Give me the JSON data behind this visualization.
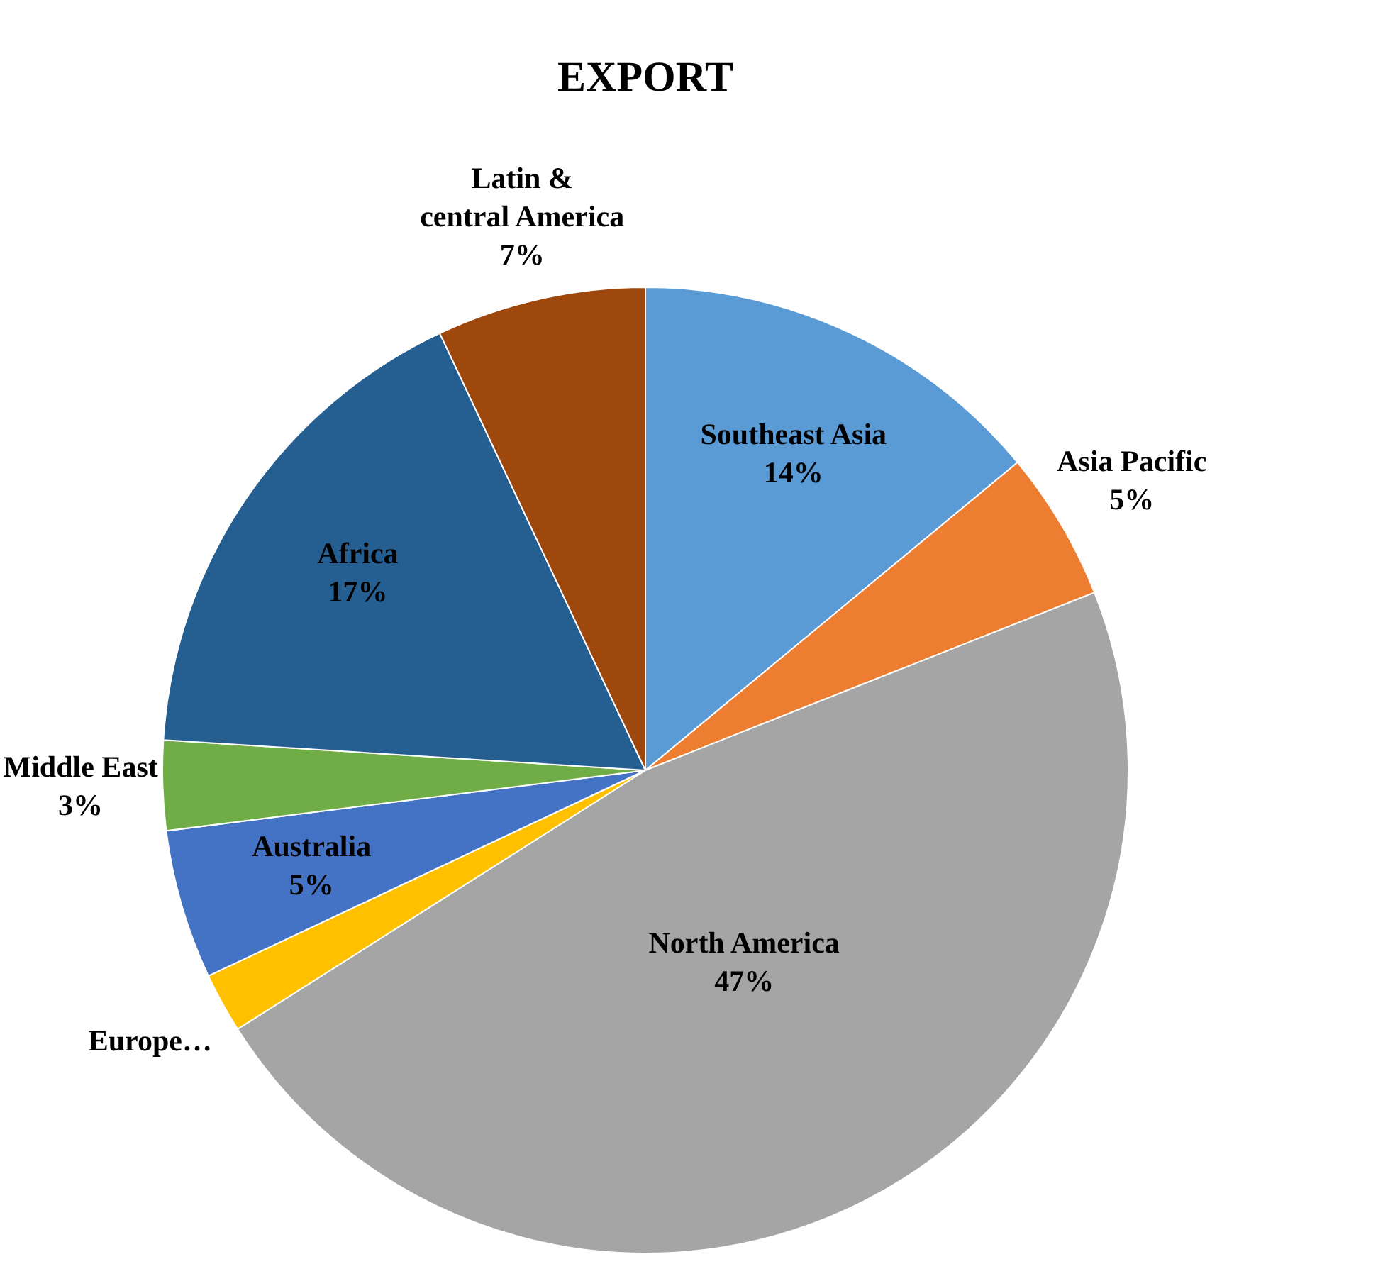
{
  "chart_data": {
    "type": "pie",
    "title": "EXPORT",
    "categories": [
      "Southeast Asia",
      "Asia Pacific",
      "North America",
      "Europe…",
      "Australia",
      "Middle East",
      "Africa",
      "Latin & central America"
    ],
    "values": [
      14,
      5,
      47,
      2,
      5,
      3,
      17,
      7
    ],
    "value_labels": [
      "14%",
      "5%",
      "47%",
      null,
      "5%",
      "3%",
      "17%",
      "7%"
    ],
    "colors": [
      "#5b9bd5",
      "#ed7d31",
      "#a5a5a5",
      "#ffc000",
      "#4472c4",
      "#70ad47",
      "#255e91",
      "#9e480e"
    ],
    "legend": false
  }
}
